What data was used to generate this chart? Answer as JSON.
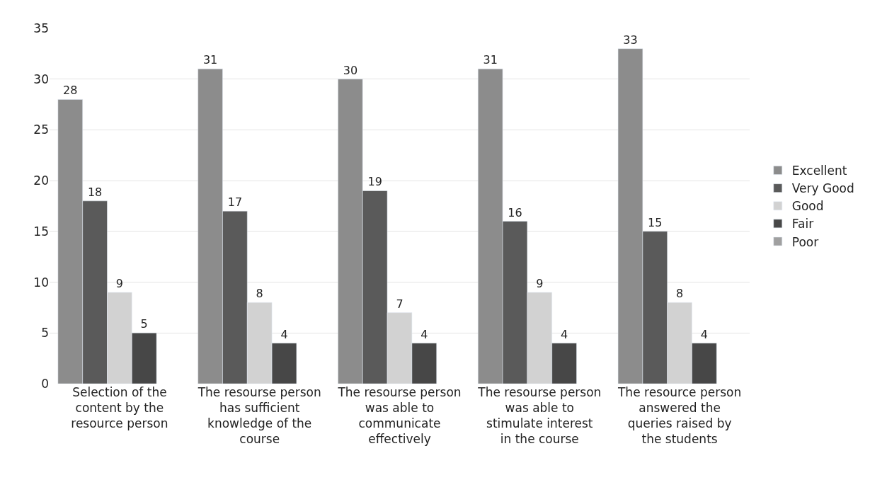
{
  "chart_data": {
    "type": "bar",
    "categories": [
      "Selection of the content by the resource person",
      "The resourse person has sufficient knowledge of the course",
      "The resourse person was able to communicate effectively",
      "The resourse person was able to stimulate interest in the course",
      "The resource person answered the queries raised by the students"
    ],
    "series": [
      {
        "name": "Excellent",
        "color": "#8c8c8c",
        "values": [
          28,
          31,
          30,
          31,
          33
        ]
      },
      {
        "name": "Very Good",
        "color": "#5a5a5a",
        "values": [
          18,
          17,
          19,
          16,
          15
        ]
      },
      {
        "name": "Good",
        "color": "#d2d2d2",
        "values": [
          9,
          8,
          7,
          9,
          8
        ]
      },
      {
        "name": "Fair",
        "color": "#474747",
        "values": [
          5,
          4,
          4,
          4,
          4
        ]
      },
      {
        "name": "Poor",
        "color": "#a0a0a0",
        "values": [
          null,
          null,
          null,
          null,
          null
        ]
      }
    ],
    "ylim": [
      0,
      35
    ],
    "yticks": [
      0,
      5,
      10,
      15,
      20,
      25,
      30,
      35
    ],
    "grid": "y",
    "legend": "right",
    "data_labels": true
  }
}
